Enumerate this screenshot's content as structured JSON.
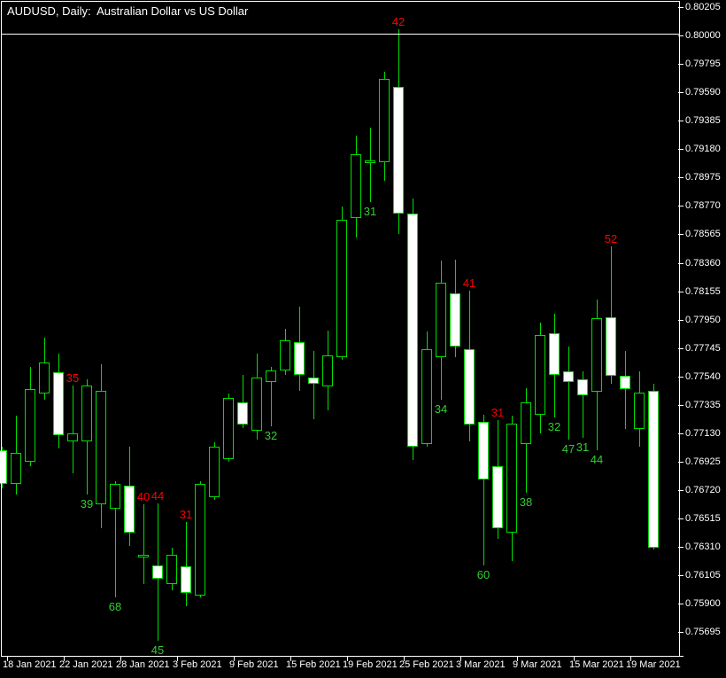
{
  "window": {
    "title": "AUDUSD, Daily:  Australian Dollar vs US Dollar"
  },
  "colors": {
    "background": "#000000",
    "frame": "#FFFFFF",
    "axis_text": "#FFFFFF",
    "candle_outline": "#00DF00",
    "bull_fill": "#000000",
    "bear_fill": "#FFFFFF",
    "annotation_above": "#FF0000",
    "annotation_below": "#32CD32"
  },
  "chart_data": {
    "type": "candlestick",
    "symbol": "AUDUSD",
    "timeframe": "Daily",
    "description": "Australian Dollar vs US Dollar",
    "grid": "off",
    "legend": "none",
    "y_axis": {
      "side": "right",
      "max": 0.80205,
      "min": 0.75695,
      "step": 0.00205,
      "labels": [
        "0.80205",
        "0.80000",
        "0.79795",
        "0.79590",
        "0.79385",
        "0.79180",
        "0.78975",
        "0.78770",
        "0.78565",
        "0.78360",
        "0.78155",
        "0.77950",
        "0.77745",
        "0.77540",
        "0.77335",
        "0.77130",
        "0.76925",
        "0.76720",
        "0.76515",
        "0.76310",
        "0.76105",
        "0.75900",
        "0.75695"
      ]
    },
    "x_axis": {
      "side": "bottom",
      "tick_labels": [
        "18 Jan 2021",
        "22 Jan 2021",
        "28 Jan 2021",
        "3 Feb 2021",
        "9 Feb 2021",
        "15 Feb 2021",
        "19 Feb 2021",
        "25 Feb 2021",
        "3 Mar 2021",
        "9 Mar 2021",
        "15 Mar 2021",
        "19 Mar 2021"
      ],
      "bars_per_tick": 4
    },
    "candles": [
      {
        "date": "18 Jan 2021",
        "o": 0.77005,
        "h": 0.77031,
        "l": 0.7673,
        "c": 0.76762,
        "dir": "down"
      },
      {
        "date": "19 Jan 2021",
        "o": 0.76762,
        "h": 0.77255,
        "l": 0.76685,
        "c": 0.76986,
        "dir": "up"
      },
      {
        "date": "20 Jan 2021",
        "o": 0.76922,
        "h": 0.77607,
        "l": 0.7689,
        "c": 0.77447,
        "dir": "up"
      },
      {
        "date": "21 Jan 2021",
        "o": 0.77415,
        "h": 0.77819,
        "l": 0.7737,
        "c": 0.77639,
        "dir": "up"
      },
      {
        "date": "22 Jan 2021",
        "o": 0.77569,
        "h": 0.77703,
        "l": 0.77018,
        "c": 0.77114,
        "dir": "down"
      },
      {
        "date": "25 Jan 2021",
        "o": 0.77069,
        "h": 0.77473,
        "l": 0.76839,
        "c": 0.77127,
        "dir": "up",
        "label_above": "35"
      },
      {
        "date": "26 Jan 2021",
        "o": 0.77069,
        "h": 0.77518,
        "l": 0.76685,
        "c": 0.77473,
        "dir": "up",
        "label_below": "39"
      },
      {
        "date": "27 Jan 2021",
        "o": 0.76614,
        "h": 0.77627,
        "l": 0.76441,
        "c": 0.77434,
        "dir": "up"
      },
      {
        "date": "28 Jan 2021",
        "o": 0.76582,
        "h": 0.76781,
        "l": 0.75942,
        "c": 0.76762,
        "dir": "up",
        "label_below": "68"
      },
      {
        "date": "29 Jan 2021",
        "o": 0.76749,
        "h": 0.77031,
        "l": 0.76313,
        "c": 0.76409,
        "dir": "down"
      },
      {
        "date": "1 Feb 2021",
        "o": 0.7623,
        "h": 0.76614,
        "l": 0.76038,
        "c": 0.76249,
        "dir": "up",
        "label_above": "40"
      },
      {
        "date": "2 Feb 2021",
        "o": 0.76172,
        "h": 0.76621,
        "l": 0.75628,
        "c": 0.76076,
        "dir": "down",
        "label_above": "44",
        "label_below": "45"
      },
      {
        "date": "3 Feb 2021",
        "o": 0.76038,
        "h": 0.763,
        "l": 0.75993,
        "c": 0.76249,
        "dir": "up"
      },
      {
        "date": "4 Feb 2021",
        "o": 0.76166,
        "h": 0.76486,
        "l": 0.75878,
        "c": 0.75974,
        "dir": "down",
        "label_above": "31"
      },
      {
        "date": "5 Feb 2021",
        "o": 0.75954,
        "h": 0.76781,
        "l": 0.75942,
        "c": 0.76762,
        "dir": "up"
      },
      {
        "date": "8 Feb 2021",
        "o": 0.76666,
        "h": 0.77063,
        "l": 0.76646,
        "c": 0.77031,
        "dir": "up"
      },
      {
        "date": "9 Feb 2021",
        "o": 0.76941,
        "h": 0.77415,
        "l": 0.76922,
        "c": 0.77383,
        "dir": "up"
      },
      {
        "date": "10 Feb 2021",
        "o": 0.77351,
        "h": 0.7755,
        "l": 0.77165,
        "c": 0.77191,
        "dir": "down"
      },
      {
        "date": "11 Feb 2021",
        "o": 0.77146,
        "h": 0.77703,
        "l": 0.77082,
        "c": 0.7753,
        "dir": "up"
      },
      {
        "date": "12 Feb 2021",
        "o": 0.77498,
        "h": 0.77607,
        "l": 0.77178,
        "c": 0.77582,
        "dir": "up",
        "label_below": "32"
      },
      {
        "date": "15 Feb 2021",
        "o": 0.77582,
        "h": 0.77883,
        "l": 0.7755,
        "c": 0.778,
        "dir": "up"
      },
      {
        "date": "16 Feb 2021",
        "o": 0.77787,
        "h": 0.78043,
        "l": 0.77434,
        "c": 0.7755,
        "dir": "down"
      },
      {
        "date": "17 Feb 2021",
        "o": 0.7753,
        "h": 0.77723,
        "l": 0.77229,
        "c": 0.77486,
        "dir": "down"
      },
      {
        "date": "18 Feb 2021",
        "o": 0.77466,
        "h": 0.7787,
        "l": 0.77293,
        "c": 0.77691,
        "dir": "up"
      },
      {
        "date": "19 Feb 2021",
        "o": 0.77678,
        "h": 0.78767,
        "l": 0.77659,
        "c": 0.78671,
        "dir": "up"
      },
      {
        "date": "22 Feb 2021",
        "o": 0.78684,
        "h": 0.79279,
        "l": 0.78543,
        "c": 0.79145,
        "dir": "up"
      },
      {
        "date": "23 Feb 2021",
        "o": 0.79087,
        "h": 0.79337,
        "l": 0.78799,
        "c": 0.791,
        "dir": "up",
        "label_below": "31"
      },
      {
        "date": "24 Feb 2021",
        "o": 0.79087,
        "h": 0.79741,
        "l": 0.78953,
        "c": 0.79689,
        "dir": "up"
      },
      {
        "date": "25 Feb 2021",
        "o": 0.79632,
        "h": 0.80048,
        "l": 0.78568,
        "c": 0.78716,
        "dir": "down",
        "label_above": "42"
      },
      {
        "date": "26 Feb 2021",
        "o": 0.78716,
        "h": 0.78825,
        "l": 0.76935,
        "c": 0.77031,
        "dir": "down"
      },
      {
        "date": "1 Mar 2021",
        "o": 0.7705,
        "h": 0.77864,
        "l": 0.77031,
        "c": 0.77735,
        "dir": "up"
      },
      {
        "date": "2 Mar 2021",
        "o": 0.77678,
        "h": 0.78376,
        "l": 0.7737,
        "c": 0.78216,
        "dir": "up",
        "label_below": "34"
      },
      {
        "date": "3 Mar 2021",
        "o": 0.78139,
        "h": 0.78382,
        "l": 0.77678,
        "c": 0.77755,
        "dir": "down"
      },
      {
        "date": "4 Mar 2021",
        "o": 0.77735,
        "h": 0.78158,
        "l": 0.77069,
        "c": 0.77191,
        "dir": "down",
        "label_above": "41"
      },
      {
        "date": "5 Mar 2021",
        "o": 0.7721,
        "h": 0.77261,
        "l": 0.76172,
        "c": 0.76794,
        "dir": "down",
        "label_below": "60"
      },
      {
        "date": "8 Mar 2021",
        "o": 0.7689,
        "h": 0.77223,
        "l": 0.76364,
        "c": 0.76441,
        "dir": "down",
        "label_above": "31"
      },
      {
        "date": "9 Mar 2021",
        "o": 0.76409,
        "h": 0.77255,
        "l": 0.76204,
        "c": 0.77197,
        "dir": "up"
      },
      {
        "date": "10 Mar 2021",
        "o": 0.7705,
        "h": 0.77453,
        "l": 0.76698,
        "c": 0.77351,
        "dir": "up",
        "label_below": "38"
      },
      {
        "date": "11 Mar 2021",
        "o": 0.77261,
        "h": 0.77928,
        "l": 0.77127,
        "c": 0.77838,
        "dir": "up"
      },
      {
        "date": "12 Mar 2021",
        "o": 0.77851,
        "h": 0.77992,
        "l": 0.77242,
        "c": 0.7755,
        "dir": "down",
        "label_below": "32"
      },
      {
        "date": "15 Mar 2021",
        "o": 0.77575,
        "h": 0.77755,
        "l": 0.77082,
        "c": 0.77498,
        "dir": "down",
        "label_below": "47"
      },
      {
        "date": "16 Mar 2021",
        "o": 0.77518,
        "h": 0.77575,
        "l": 0.77095,
        "c": 0.77402,
        "dir": "down",
        "label_below": "31"
      },
      {
        "date": "17 Mar 2021",
        "o": 0.77428,
        "h": 0.78094,
        "l": 0.77005,
        "c": 0.7796,
        "dir": "up",
        "label_below": "44"
      },
      {
        "date": "18 Mar 2021",
        "o": 0.77966,
        "h": 0.78479,
        "l": 0.77486,
        "c": 0.77543,
        "dir": "down",
        "label_above": "52"
      },
      {
        "date": "19 Mar 2021",
        "o": 0.77543,
        "h": 0.77723,
        "l": 0.77159,
        "c": 0.77447,
        "dir": "down"
      },
      {
        "date": "22 Mar 2021",
        "o": 0.77159,
        "h": 0.77575,
        "l": 0.77031,
        "c": 0.77422,
        "dir": "up"
      },
      {
        "date": "23 Mar 2021",
        "o": 0.77434,
        "h": 0.77486,
        "l": 0.76288,
        "c": 0.763,
        "dir": "down"
      }
    ]
  }
}
